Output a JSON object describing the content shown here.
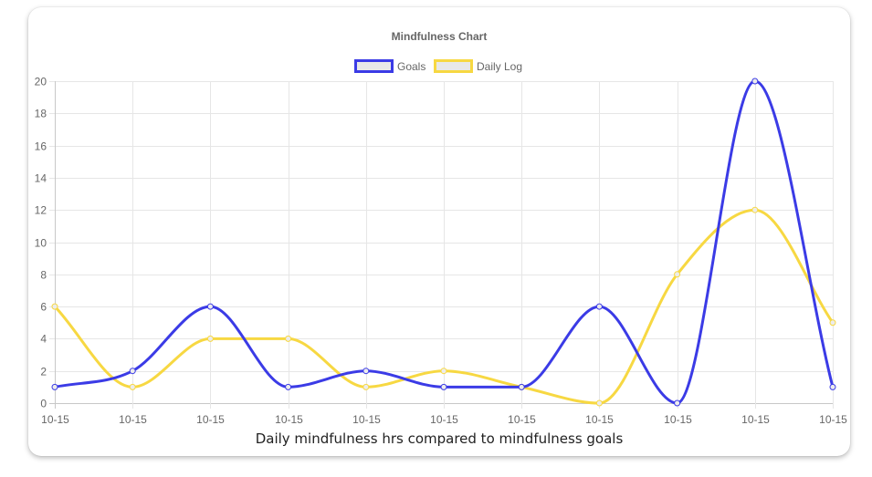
{
  "chart_data": {
    "type": "line",
    "title": "Mindfulness Chart",
    "caption": "Daily mindfulness hrs compared to mindfulness goals",
    "categories": [
      "10-15",
      "10-15",
      "10-15",
      "10-15",
      "10-15",
      "10-15",
      "10-15",
      "10-15",
      "10-15",
      "10-15",
      "10-15"
    ],
    "ylim": [
      0,
      20
    ],
    "yticks": [
      0,
      2,
      4,
      6,
      8,
      10,
      12,
      14,
      16,
      18,
      20
    ],
    "grid": true,
    "legend": "top-center",
    "series": [
      {
        "name": "Goals",
        "color": "#3b3be6",
        "values": [
          1,
          2,
          6,
          1,
          2,
          1,
          1,
          6,
          0,
          20,
          1
        ]
      },
      {
        "name": "Daily Log",
        "color": "#f7d842",
        "values": [
          6,
          1,
          4,
          4,
          1,
          2,
          1,
          0,
          8,
          12,
          5
        ]
      }
    ]
  }
}
